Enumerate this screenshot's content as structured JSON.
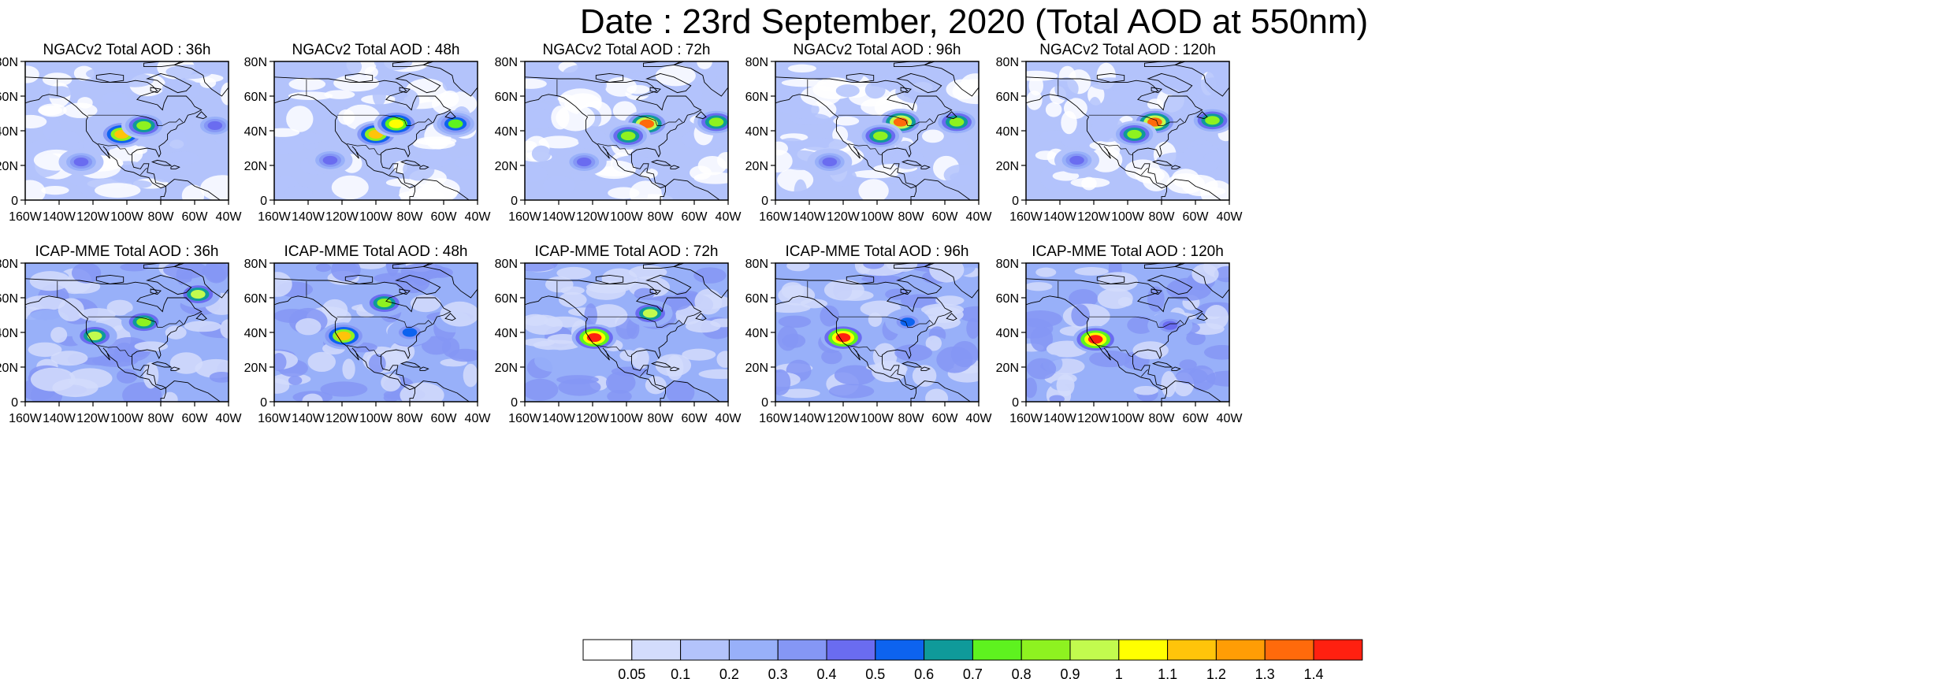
{
  "title": "Date : 23rd September, 2020 (Total AOD at 550nm)",
  "axes": {
    "x_ticks": [
      "160W",
      "140W",
      "120W",
      "100W",
      "80W",
      "60W",
      "40W"
    ],
    "y_ticks": [
      "80N",
      "60N",
      "40N",
      "20N",
      "0"
    ],
    "lon_range": [
      -160,
      -40
    ],
    "lat_range": [
      0,
      80
    ]
  },
  "colorbar": {
    "labels": [
      "0.05",
      "0.1",
      "0.2",
      "0.3",
      "0.4",
      "0.5",
      "0.6",
      "0.7",
      "0.8",
      "0.9",
      "1",
      "1.1",
      "1.2",
      "1.3",
      "1.4"
    ],
    "colors": [
      "#ffffff",
      "#d3dcfc",
      "#b3c3fb",
      "#98b0f9",
      "#8597f5",
      "#6a6cf0",
      "#0d63ef",
      "#0f9a9a",
      "#5ef21f",
      "#8ef220",
      "#c2fb4e",
      "#ffff00",
      "#ffc40a",
      "#ff9d05",
      "#ff6a0b",
      "#ff2010"
    ]
  },
  "chart_data": [
    {
      "type": "heatmap",
      "title": "NGACv2 Total AOD : 36h",
      "model": "NGACv2",
      "lead_hours": 36,
      "background_aod": 0.1,
      "hotspots": [
        {
          "lon": -103,
          "lat": 38,
          "aod": 1.1
        },
        {
          "lon": -90,
          "lat": 43,
          "aod": 0.8
        },
        {
          "lon": -48,
          "lat": 43,
          "aod": 0.4
        },
        {
          "lon": -127,
          "lat": 22,
          "aod": 0.4
        }
      ]
    },
    {
      "type": "heatmap",
      "title": "NGACv2 Total AOD : 48h",
      "model": "NGACv2",
      "lead_hours": 48,
      "background_aod": 0.1,
      "hotspots": [
        {
          "lon": -100,
          "lat": 38,
          "aod": 1.1
        },
        {
          "lon": -88,
          "lat": 44,
          "aod": 1.0
        },
        {
          "lon": -53,
          "lat": 44,
          "aod": 0.7
        },
        {
          "lon": -127,
          "lat": 23,
          "aod": 0.4
        }
      ]
    },
    {
      "type": "heatmap",
      "title": "NGACv2 Total AOD : 72h",
      "model": "NGACv2",
      "lead_hours": 72,
      "background_aod": 0.1,
      "hotspots": [
        {
          "lon": -88,
          "lat": 44,
          "aod": 1.3
        },
        {
          "lon": -99,
          "lat": 37,
          "aod": 0.8
        },
        {
          "lon": -47,
          "lat": 45,
          "aod": 0.8
        },
        {
          "lon": -125,
          "lat": 22,
          "aod": 0.4
        }
      ]
    },
    {
      "type": "heatmap",
      "title": "NGACv2 Total AOD : 96h",
      "model": "NGACv2",
      "lead_hours": 96,
      "background_aod": 0.1,
      "hotspots": [
        {
          "lon": -86,
          "lat": 45,
          "aod": 1.3
        },
        {
          "lon": -98,
          "lat": 37,
          "aod": 0.8
        },
        {
          "lon": -53,
          "lat": 45,
          "aod": 0.8
        },
        {
          "lon": -128,
          "lat": 22,
          "aod": 0.4
        }
      ]
    },
    {
      "type": "heatmap",
      "title": "NGACv2 Total AOD : 120h",
      "model": "NGACv2",
      "lead_hours": 120,
      "background_aod": 0.1,
      "hotspots": [
        {
          "lon": -84,
          "lat": 45,
          "aod": 1.3
        },
        {
          "lon": -96,
          "lat": 38,
          "aod": 0.8
        },
        {
          "lon": -50,
          "lat": 46,
          "aod": 0.8
        },
        {
          "lon": -130,
          "lat": 23,
          "aod": 0.4
        }
      ]
    },
    {
      "type": "heatmap",
      "title": "ICAP-MME Total AOD : 36h",
      "model": "ICAP-MME",
      "lead_hours": 36,
      "background_aod": 0.2,
      "hotspots": [
        {
          "lon": -58,
          "lat": 62,
          "aod": 0.9
        },
        {
          "lon": -90,
          "lat": 46,
          "aod": 0.8
        },
        {
          "lon": -119,
          "lat": 38,
          "aod": 0.9
        }
      ]
    },
    {
      "type": "heatmap",
      "title": "ICAP-MME Total AOD : 48h",
      "model": "ICAP-MME",
      "lead_hours": 48,
      "background_aod": 0.2,
      "hotspots": [
        {
          "lon": -95,
          "lat": 57,
          "aod": 0.8
        },
        {
          "lon": -119,
          "lat": 38,
          "aod": 1.1
        },
        {
          "lon": -80,
          "lat": 40,
          "aod": 0.5
        }
      ]
    },
    {
      "type": "heatmap",
      "title": "ICAP-MME Total AOD : 72h",
      "model": "ICAP-MME",
      "lead_hours": 72,
      "background_aod": 0.2,
      "hotspots": [
        {
          "lon": -86,
          "lat": 51,
          "aod": 0.9
        },
        {
          "lon": -119,
          "lat": 37,
          "aod": 1.4
        }
      ]
    },
    {
      "type": "heatmap",
      "title": "ICAP-MME Total AOD : 96h",
      "model": "ICAP-MME",
      "lead_hours": 96,
      "background_aod": 0.2,
      "hotspots": [
        {
          "lon": -120,
          "lat": 37,
          "aod": 1.4
        },
        {
          "lon": -82,
          "lat": 46,
          "aod": 0.5
        }
      ]
    },
    {
      "type": "heatmap",
      "title": "ICAP-MME Total AOD : 120h",
      "model": "ICAP-MME",
      "lead_hours": 120,
      "background_aod": 0.2,
      "hotspots": [
        {
          "lon": -119,
          "lat": 36,
          "aod": 1.4
        },
        {
          "lon": -75,
          "lat": 44,
          "aod": 0.4
        }
      ]
    }
  ]
}
